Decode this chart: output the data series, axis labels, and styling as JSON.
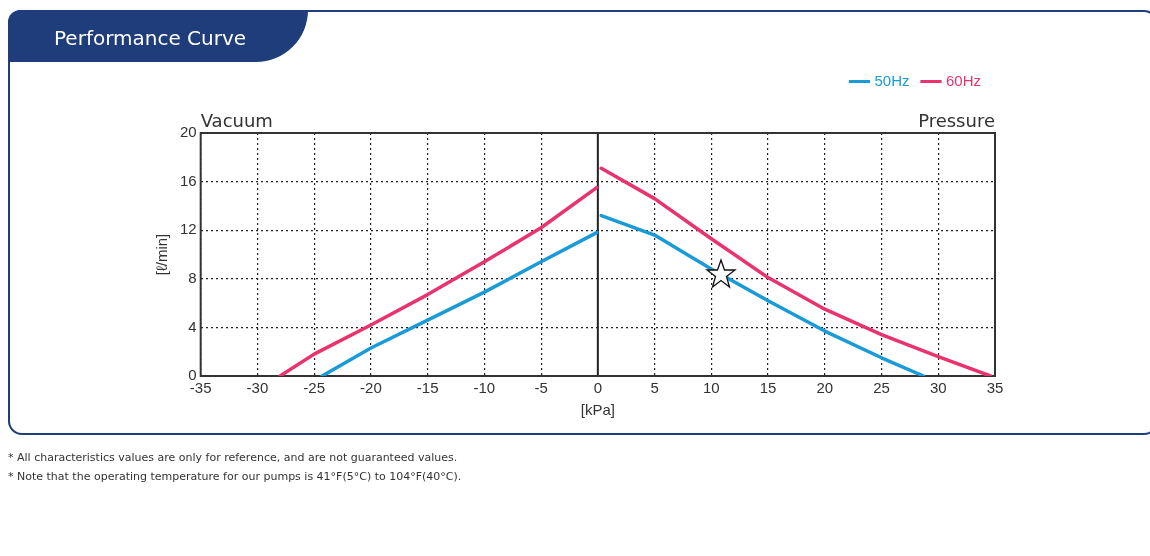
{
  "chart_data": {
    "type": "line",
    "title": "Performance Curve",
    "xlabel": "[kPa]",
    "ylabel": "[ℓ/min]",
    "annotations": [
      "Vacuum",
      "Pressure",
      "* All characteristics values are only for reference, and are not guaranteed values.",
      "* Note that the operating temperature for our pumps is 41°F(5°C) to 104°F(40°C)."
    ],
    "series": [
      {
        "name": "50Hz",
        "color": "#1a9ad6",
        "x": [
          -24.3,
          -20,
          -15,
          -10,
          -5,
          -0.1,
          0,
          0.3,
          5,
          10,
          15,
          20,
          25,
          28.7
        ],
        "values": [
          0,
          2.3,
          4.6,
          6.9,
          9.4,
          11.8,
          null,
          13.2,
          11.6,
          8.8,
          6.2,
          3.7,
          1.5,
          0
        ]
      },
      {
        "name": "60Hz",
        "color": "#e8336d",
        "x": [
          -28,
          -25,
          -20,
          -15,
          -10,
          -5,
          -0.1,
          0,
          0.3,
          5,
          10,
          15,
          20,
          25,
          30,
          34.6
        ],
        "values": [
          0,
          1.8,
          4.2,
          6.7,
          9.4,
          12.2,
          15.5,
          null,
          17.1,
          14.6,
          11.3,
          8.1,
          5.5,
          3.4,
          1.6,
          0
        ]
      }
    ],
    "xlim": [
      -35,
      35
    ],
    "xticks": [
      -35,
      -30,
      -25,
      -20,
      -15,
      -10,
      -5,
      0,
      5,
      10,
      15,
      20,
      25,
      30,
      35
    ],
    "ylim": [
      0,
      20
    ],
    "yticks": [
      0,
      4,
      8,
      12,
      16,
      20
    ],
    "ref_lines": [
      {
        "axis": "x",
        "value": 0,
        "color": "#222222"
      }
    ],
    "grid": true,
    "legend": "top right",
    "marker": "none",
    "line_style": "solid"
  }
}
